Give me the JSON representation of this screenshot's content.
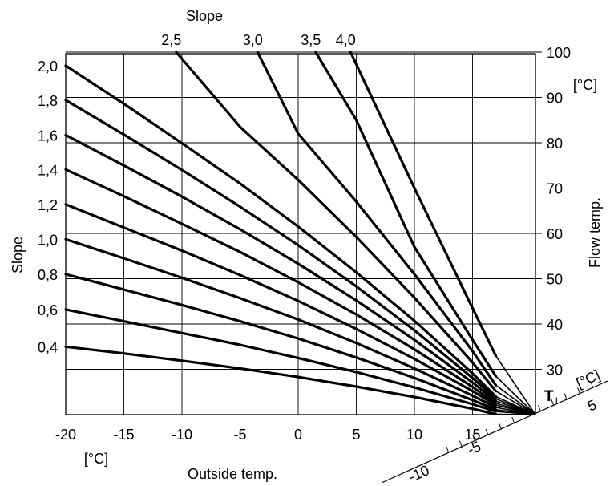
{
  "chart_data": {
    "type": "line",
    "title": "Slope",
    "xlabel": "Outside temp.",
    "xunit": "[°C]",
    "ylabel_left": "Slope",
    "ylabel_right": "Flow temp.",
    "yunit_right": "[°C]",
    "xlim": [
      -20,
      20
    ],
    "ylim": [
      20,
      100
    ],
    "grid": true,
    "x_ticks": [
      "-20",
      "-15",
      "-10",
      "-5",
      "0",
      "5",
      "10",
      "15"
    ],
    "x_tick_values": [
      -20,
      -15,
      -10,
      -5,
      0,
      5,
      10,
      15
    ],
    "y_right_ticks": [
      "100",
      "90",
      "80",
      "70",
      "60",
      "50",
      "40",
      "30"
    ],
    "y_right_tick_values": [
      100,
      90,
      80,
      70,
      60,
      50,
      40,
      30
    ],
    "left_slope_labels": [
      "2,0",
      "1,8",
      "1,6",
      "1,4",
      "1,2",
      "1,0",
      "0,8",
      "0,6",
      "0,4"
    ],
    "top_slope_labels": [
      "2,5",
      "3,0",
      "3,5",
      "4,0"
    ],
    "room_temp_label": "T",
    "room_temp_subscript": "I",
    "room_temp_unit": "[°C]",
    "room_temp_ticks": [
      "-10",
      "-5",
      "5"
    ],
    "series": [
      {
        "label": "0,4",
        "x": [
          -20,
          -15,
          -10,
          -5,
          0,
          5,
          10,
          15,
          17
        ],
        "y": [
          35,
          33.5,
          31.9,
          30.2,
          28.3,
          26.2,
          23.9,
          21.3,
          20.1
        ]
      },
      {
        "label": "0,6",
        "x": [
          -20,
          -15,
          -10,
          -5,
          0,
          5,
          10,
          15,
          17
        ],
        "y": [
          43.2,
          40.6,
          38,
          35.4,
          32.5,
          29.4,
          26,
          22.3,
          20.7
        ]
      },
      {
        "label": "0,8",
        "x": [
          -20,
          -15,
          -10,
          -5,
          0,
          5,
          10,
          15,
          17
        ],
        "y": [
          51,
          47.6,
          44.2,
          40.6,
          36.8,
          32.6,
          28.1,
          23.2,
          21.1
        ]
      },
      {
        "label": "1,0",
        "x": [
          -20,
          -15,
          -10,
          -5,
          0,
          5,
          10,
          15,
          17
        ],
        "y": [
          58.7,
          54.5,
          50.2,
          45.7,
          41,
          35.8,
          30.2,
          24.2,
          21.6
        ]
      },
      {
        "label": "1,2",
        "x": [
          -20,
          -15,
          -10,
          -5,
          0,
          5,
          10,
          15,
          17
        ],
        "y": [
          66.4,
          61.3,
          56.2,
          50.8,
          45.1,
          38.9,
          32.3,
          25.2,
          22.1
        ]
      },
      {
        "label": "1,4",
        "x": [
          -20,
          -15,
          -10,
          -5,
          0,
          5,
          10,
          15,
          17
        ],
        "y": [
          74.1,
          68.2,
          62.1,
          55.9,
          49.2,
          42.1,
          34.4,
          26.1,
          22.5
        ]
      },
      {
        "label": "1,6",
        "x": [
          -20,
          -15,
          -10,
          -5,
          0,
          5,
          10,
          15,
          17
        ],
        "y": [
          81.7,
          75,
          68.1,
          60.9,
          53.3,
          45.2,
          36.5,
          27.1,
          23
        ]
      },
      {
        "label": "1,8",
        "x": [
          -20,
          -15,
          -10,
          -5,
          0,
          5,
          10,
          15,
          17
        ],
        "y": [
          89.4,
          81.8,
          74,
          65.9,
          57.4,
          48.3,
          38.6,
          28.1,
          23.5
        ]
      },
      {
        "label": "2,0",
        "x": [
          -20,
          -15,
          -10,
          -5,
          0,
          5,
          10,
          15,
          17
        ],
        "y": [
          97,
          88.6,
          79.9,
          71,
          61.5,
          51.4,
          40.7,
          29.1,
          24
        ]
      },
      {
        "label": "2,5",
        "x": [
          -10.5,
          -5,
          0,
          5,
          10,
          15,
          17
        ],
        "y": [
          100,
          83.5,
          71.8,
          59.2,
          45.8,
          31.5,
          25.2
        ]
      },
      {
        "label": "3,0",
        "x": [
          -3.5,
          0,
          5,
          10,
          15,
          17
        ],
        "y": [
          100,
          82,
          67,
          51,
          34,
          26.5
        ]
      },
      {
        "label": "3,5",
        "x": [
          1.5,
          5,
          10,
          15,
          17
        ],
        "y": [
          100,
          85,
          57,
          36.5,
          28.5
        ]
      },
      {
        "label": "4,0",
        "x": [
          4.5,
          10,
          15,
          17
        ],
        "y": [
          100,
          70,
          43.5,
          33
        ]
      }
    ]
  }
}
